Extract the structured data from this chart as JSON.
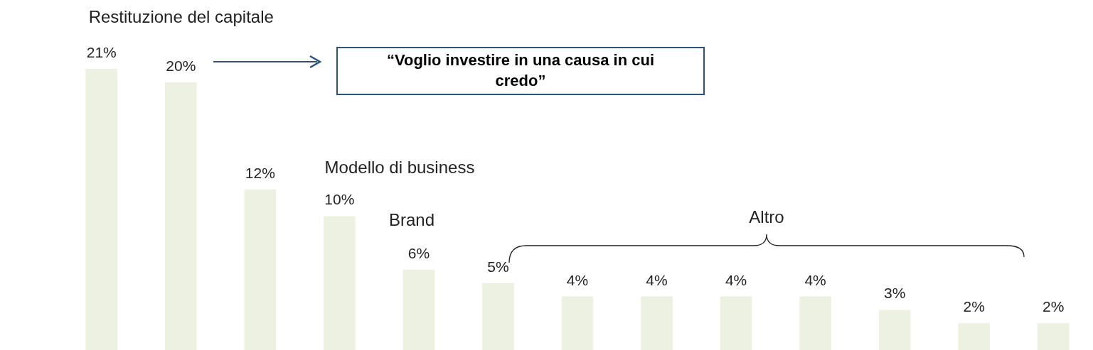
{
  "chart_data": {
    "type": "bar",
    "categories": [
      null,
      null,
      null,
      null,
      null,
      null,
      null,
      null,
      null,
      null,
      null,
      null,
      null
    ],
    "values": [
      21,
      20,
      12,
      10,
      6,
      5,
      4,
      4,
      4,
      4,
      3,
      2,
      2
    ],
    "value_labels": [
      "21%",
      "20%",
      "12%",
      "10%",
      "6%",
      "5%",
      "4%",
      "4%",
      "4%",
      "4%",
      "3%",
      "2%",
      "2%"
    ],
    "color": "#edf1e1",
    "annotations": [
      "Restituzione del capitale",
      "“Voglio investire in una causa in cui credo”",
      "Modello di business",
      "Brand",
      "Altro"
    ]
  }
}
